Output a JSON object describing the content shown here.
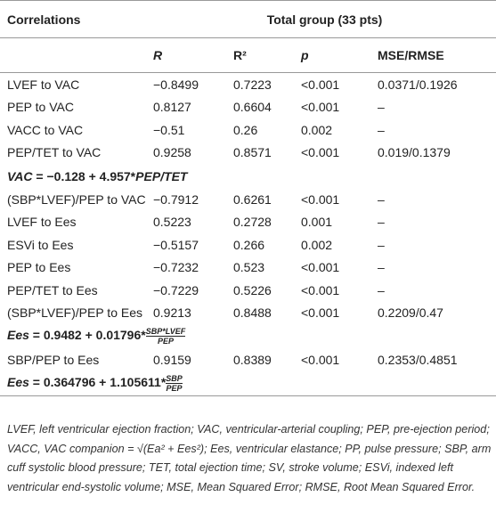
{
  "header": {
    "title": "Correlations",
    "group": "Total group (33 pts)",
    "columns": [
      "R",
      "R²",
      "p",
      "MSE/RMSE"
    ]
  },
  "rows": [
    {
      "cells": [
        "LVEF to VAC",
        "−0.8499",
        "0.7223",
        "<0.001",
        "0.0371/0.1926"
      ]
    },
    {
      "cells": [
        "PEP to VAC",
        "0.8127",
        "0.6604",
        "<0.001",
        "–"
      ]
    },
    {
      "cells": [
        "VACC to VAC",
        "−0.51",
        "0.26",
        "0.002",
        "–"
      ]
    },
    {
      "cells": [
        "PEP/TET to VAC",
        "0.9258",
        "0.8571",
        "<0.001",
        "0.019/0.1379"
      ]
    },
    {
      "formula": {
        "lhs": "VAC",
        "rest": " = −0.128 + 4.957*",
        "tail": "PEP/TET"
      }
    },
    {
      "cells": [
        "(SBP*LVEF)/PEP to VAC",
        "−0.7912",
        "0.6261",
        "<0.001",
        "–"
      ]
    },
    {
      "cells": [
        "LVEF to Ees",
        "0.5223",
        "0.2728",
        "0.001",
        "–"
      ]
    },
    {
      "cells": [
        "ESVi to Ees",
        "−0.5157",
        "0.266",
        "0.002",
        "–"
      ]
    },
    {
      "cells": [
        "PEP to Ees",
        "−0.7232",
        "0.523",
        "<0.001",
        "–"
      ]
    },
    {
      "cells": [
        "PEP/TET to Ees",
        "−0.7229",
        "0.5226",
        "<0.001",
        "–"
      ]
    },
    {
      "cells": [
        "(SBP*LVEF)/PEP to Ees",
        "0.9213",
        "0.8488",
        "<0.001",
        "0.2209/0.47"
      ]
    },
    {
      "formula": {
        "lhs": "Ees",
        "rest": " = 0.9482 + 0.01796*",
        "num": "SBP*LVEF",
        "den": "PEP"
      }
    },
    {
      "cells": [
        "SBP/PEP to Ees",
        "0.9159",
        "0.8389",
        "<0.001",
        "0.2353/0.4851"
      ]
    },
    {
      "formula": {
        "lhs": "Ees",
        "rest": " = 0.364796 + 1.105611*",
        "num": "SBP",
        "den": "PEP"
      }
    }
  ],
  "footnote": "LVEF, left ventricular ejection fraction; VAC, ventricular-arterial coupling; PEP, pre-ejection period; VACC, VAC companion = √(Ea² + Ees²); Ees, ventricular elastance; PP, pulse pressure; SBP, arm cuff systolic blood pressure; TET, total ejection time; SV, stroke volume; ESVi, indexed left ventricular end-systolic volume; MSE, Mean Squared Error; RMSE, Root Mean Squared Error."
}
